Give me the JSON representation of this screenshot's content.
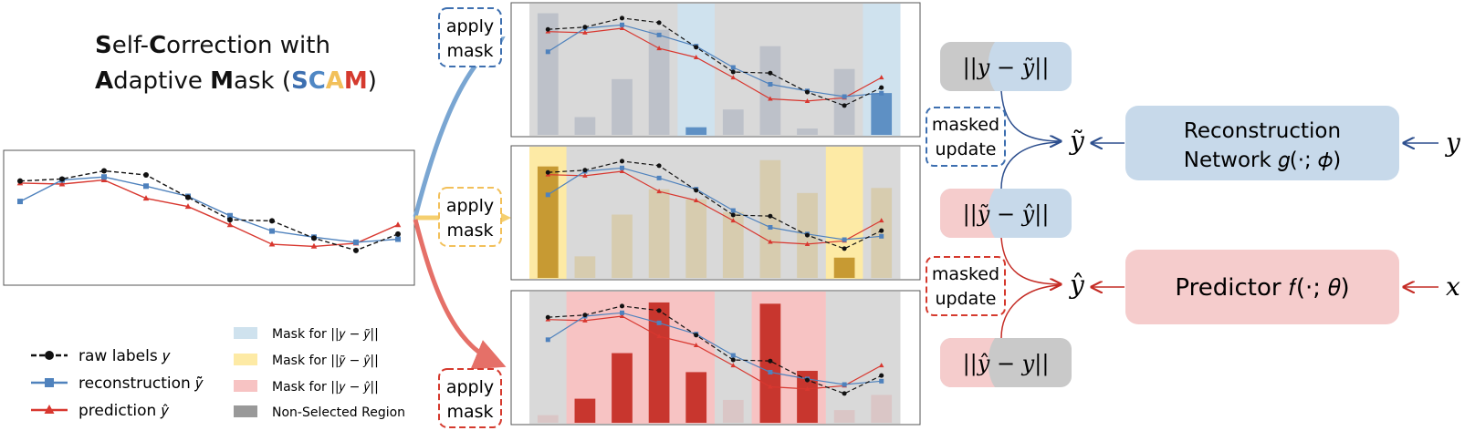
{
  "title": {
    "line1": [
      {
        "text": "S",
        "bold": true,
        "color": "#111111"
      },
      {
        "text": "elf-",
        "bold": false,
        "color": "#111111"
      },
      {
        "text": "C",
        "bold": true,
        "color": "#111111"
      },
      {
        "text": "orrection with",
        "bold": false,
        "color": "#111111"
      }
    ],
    "line2": [
      {
        "text": "A",
        "bold": true,
        "color": "#111111"
      },
      {
        "text": "daptive ",
        "bold": false,
        "color": "#111111"
      },
      {
        "text": "M",
        "bold": true,
        "color": "#111111"
      },
      {
        "text": "ask (",
        "bold": false,
        "color": "#111111"
      },
      {
        "text": "S",
        "bold": true,
        "color": "#3d6fb0"
      },
      {
        "text": "C",
        "bold": true,
        "color": "#4f87c4"
      },
      {
        "text": "A",
        "bold": true,
        "color": "#f2c05a"
      },
      {
        "text": "M",
        "bold": true,
        "color": "#d53a2e"
      },
      {
        "text": ")",
        "bold": false,
        "color": "#111111"
      }
    ]
  },
  "legend_left": [
    {
      "text": "raw labels 𝑦",
      "series": "raw"
    },
    {
      "text": "reconstruction 𝑦̃",
      "series": "recon"
    },
    {
      "text": "prediction 𝑦̂",
      "series": "pred"
    }
  ],
  "legend_right": [
    {
      "text": "Mask for ||𝑦 − 𝑦̃||",
      "color": "#cfe2ee"
    },
    {
      "text": "Mask for ||𝑦̃ − 𝑦̂||",
      "color": "#fdeaa5"
    },
    {
      "text": "Mask for ||𝑦 − 𝑦̂||",
      "color": "#f7c3c3"
    },
    {
      "text": "Non-Selected Region",
      "color": "#999999"
    }
  ],
  "colors": {
    "raw": "#111111",
    "recon": "#4f82bd",
    "pred": "#d8372f",
    "arrow_blue": "#7aa6d2",
    "arrow_yellow": "#f5cf6f",
    "arrow_red": "#e57068",
    "navy": "#2d4f8e",
    "dark_red": "#c42b24",
    "box_blue": "#c7d9ea",
    "box_pink": "#f5cccc",
    "box_gray": "#c9c9c9",
    "region_gray": "#d9d9d9"
  },
  "series": {
    "raw": [
      0.86,
      0.88,
      0.96,
      0.92,
      0.7,
      0.48,
      0.47,
      0.3,
      0.18,
      0.34
    ],
    "recon": [
      0.66,
      0.87,
      0.9,
      0.81,
      0.71,
      0.52,
      0.37,
      0.31,
      0.26,
      0.29
    ],
    "pred": [
      0.84,
      0.83,
      0.87,
      0.69,
      0.61,
      0.43,
      0.24,
      0.22,
      0.25,
      0.43
    ]
  },
  "panels": [
    {
      "id": "panel-1",
      "tinted": [
        4,
        9
      ],
      "tint_color": "#cfe2ee",
      "bar_base": "#b7bcc6",
      "bar_strong": "#5e90c4",
      "bars": [
        0.96,
        0.14,
        0.44,
        0.83,
        0.06,
        0.2,
        0.7,
        0.05,
        0.52,
        0.33
      ]
    },
    {
      "id": "panel-2",
      "tinted": [
        0,
        8
      ],
      "tint_color": "#fdeaa5",
      "bar_base": "#d6c9a7",
      "bar_strong": "#c79a33",
      "bars": [
        0.88,
        0.17,
        0.5,
        0.7,
        0.62,
        0.52,
        0.93,
        0.67,
        0.16,
        0.71
      ]
    },
    {
      "id": "panel-3",
      "tinted": [
        1,
        2,
        3,
        4,
        6,
        7
      ],
      "tint_color": "#f7c3c3",
      "bar_base": "#d9c2c2",
      "bar_strong": "#c8362e",
      "bars": [
        0.06,
        0.19,
        0.55,
        0.95,
        0.4,
        0.18,
        0.94,
        0.41,
        0.1,
        0.22
      ]
    }
  ],
  "labels": {
    "apply_mask": [
      "apply",
      "mask"
    ],
    "masked_update": [
      "masked",
      "update"
    ],
    "y_tilde": "𝑦̃",
    "y_hat": "𝑦̂",
    "y": "𝑦",
    "x": "𝑥",
    "recon_line1": "Reconstruction",
    "recon_line2": "Network 𝑔(·; 𝜙)",
    "predictor": "Predictor 𝑓(·; 𝜃)",
    "norm_y_ytilde": "||𝑦 − 𝑦̃||",
    "norm_ytilde_yhat": "||𝑦̃ − 𝑦̂||",
    "norm_yhat_y": "||𝑦̂ − 𝑦||"
  }
}
